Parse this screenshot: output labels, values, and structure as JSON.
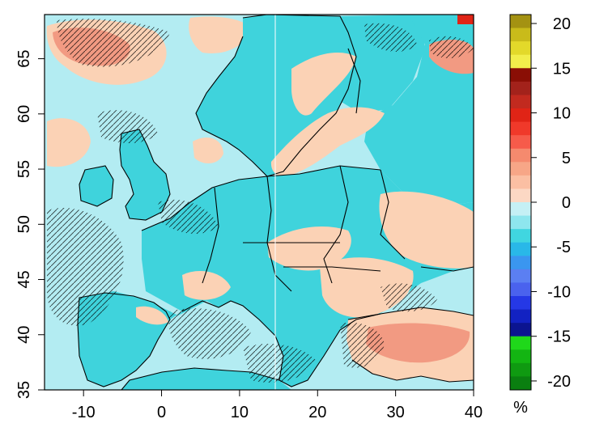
{
  "map": {
    "x_axis": {
      "range": [
        -15,
        40
      ],
      "ticks": [
        {
          "value": -10,
          "label": "-10"
        },
        {
          "value": 0,
          "label": "0"
        },
        {
          "value": 10,
          "label": "10"
        },
        {
          "value": 20,
          "label": "20"
        },
        {
          "value": 30,
          "label": "30"
        },
        {
          "value": 40,
          "label": "40"
        }
      ]
    },
    "y_axis": {
      "range": [
        35,
        69
      ],
      "ticks": [
        {
          "value": 35,
          "label": "35"
        },
        {
          "value": 40,
          "label": "40"
        },
        {
          "value": 45,
          "label": "45"
        },
        {
          "value": 50,
          "label": "50"
        },
        {
          "value": 55,
          "label": "55"
        },
        {
          "value": 60,
          "label": "60"
        },
        {
          "value": 65,
          "label": "65"
        }
      ]
    },
    "colors": {
      "sea_base": "#b3ecf2",
      "land_negative": "#3fd3dc",
      "land_positive": "#fbd2b5",
      "warm_strong": "#f29a82",
      "coastline": "#000000"
    }
  },
  "colorbar": {
    "unit": "%",
    "range": [
      -21,
      21
    ],
    "bands": [
      {
        "from": 19.5,
        "to": 21,
        "color": "#a49212"
      },
      {
        "from": 18,
        "to": 19.5,
        "color": "#c9bb1a"
      },
      {
        "from": 16.5,
        "to": 18,
        "color": "#e3d92a"
      },
      {
        "from": 15,
        "to": 16.5,
        "color": "#f2ee4b"
      },
      {
        "from": 13.5,
        "to": 15,
        "color": "#8a0e05"
      },
      {
        "from": 12,
        "to": 13.5,
        "color": "#a3221b"
      },
      {
        "from": 10.5,
        "to": 12,
        "color": "#c22a1f"
      },
      {
        "from": 9,
        "to": 10.5,
        "color": "#e02416"
      },
      {
        "from": 7.5,
        "to": 9,
        "color": "#f0392a"
      },
      {
        "from": 6,
        "to": 7.5,
        "color": "#f65b4a"
      },
      {
        "from": 4.5,
        "to": 6,
        "color": "#f58a6e"
      },
      {
        "from": 3,
        "to": 4.5,
        "color": "#f7a687"
      },
      {
        "from": 1.5,
        "to": 3,
        "color": "#fbbfa3"
      },
      {
        "from": 0,
        "to": 1.5,
        "color": "#fcd8c4"
      },
      {
        "from": -1.5,
        "to": 0,
        "color": "#c5f0f5"
      },
      {
        "from": -3,
        "to": -1.5,
        "color": "#8ee6ee"
      },
      {
        "from": -4.5,
        "to": -3,
        "color": "#40d6e0"
      },
      {
        "from": -6,
        "to": -4.5,
        "color": "#29b8e8"
      },
      {
        "from": -7.5,
        "to": -6,
        "color": "#3a96f0"
      },
      {
        "from": -9,
        "to": -7.5,
        "color": "#5b7ff2"
      },
      {
        "from": -10.5,
        "to": -9,
        "color": "#4a62ee"
      },
      {
        "from": -12,
        "to": -10.5,
        "color": "#2538e6"
      },
      {
        "from": -13.5,
        "to": -12,
        "color": "#1222c2"
      },
      {
        "from": -15,
        "to": -13.5,
        "color": "#0b1490"
      },
      {
        "from": -16.5,
        "to": -15,
        "color": "#1fd81a"
      },
      {
        "from": -18,
        "to": -16.5,
        "color": "#13b512"
      },
      {
        "from": -19.5,
        "to": -18,
        "color": "#0f9a11"
      },
      {
        "from": -21,
        "to": -19.5,
        "color": "#0a7f10"
      }
    ],
    "ticks": [
      {
        "value": 20,
        "label": "20"
      },
      {
        "value": 15,
        "label": "15"
      },
      {
        "value": 10,
        "label": "10"
      },
      {
        "value": 5,
        "label": "5"
      },
      {
        "value": 0,
        "label": "0"
      },
      {
        "value": -5,
        "label": "-5"
      },
      {
        "value": -10,
        "label": "-10"
      },
      {
        "value": -15,
        "label": "-15"
      },
      {
        "value": -20,
        "label": "-20"
      }
    ]
  }
}
